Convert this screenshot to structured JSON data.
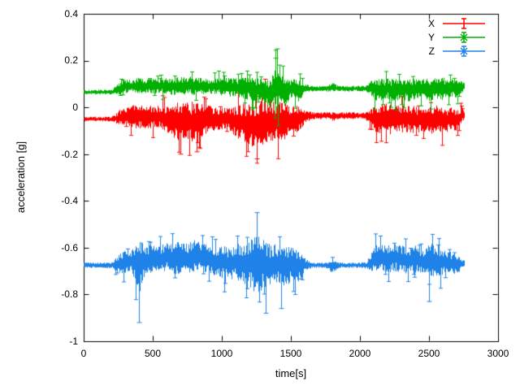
{
  "figure": {
    "background": "#ffffff",
    "border_color": "#000000"
  },
  "axes": {
    "xlabel": "time[s]",
    "ylabel": "acceleration [g]",
    "x_ticks": [
      "0",
      "500",
      "1000",
      "1500",
      "2000",
      "2500",
      "3000"
    ],
    "y_ticks": [
      "0.4",
      "0.2",
      "0",
      "-0.2",
      "-0.4",
      "-0.6",
      "-0.8",
      "-1"
    ],
    "x_range": [
      0,
      3000
    ],
    "y_range": [
      -1,
      0.4
    ],
    "grid": false
  },
  "legend": {
    "position": "top-right",
    "entries": [
      {
        "label": "X",
        "color": "#ff0000",
        "marker": "plus"
      },
      {
        "label": "Y",
        "color": "#00b000",
        "marker": "cross"
      },
      {
        "label": "Z",
        "color": "#1e82e8",
        "marker": "asterisk"
      }
    ]
  },
  "chart_data": {
    "type": "scatter",
    "style": "errorbars",
    "title": "",
    "xlabel": "time[s]",
    "ylabel": "acceleration [g]",
    "xlim": [
      0,
      3000
    ],
    "ylim": [
      -1,
      0.4
    ],
    "x": [
      0,
      50,
      100,
      150,
      200,
      250,
      300,
      350,
      400,
      450,
      500,
      550,
      600,
      650,
      700,
      750,
      800,
      850,
      900,
      950,
      1000,
      1050,
      1100,
      1150,
      1200,
      1250,
      1300,
      1350,
      1400,
      1450,
      1500,
      1550,
      1600,
      1650,
      1700,
      1750,
      1800,
      1850,
      1900,
      1950,
      2000,
      2050,
      2100,
      2150,
      2200,
      2250,
      2300,
      2350,
      2400,
      2450,
      2500,
      2550,
      2600,
      2650,
      2700,
      2750
    ],
    "series": [
      {
        "name": "X",
        "color": "#ff0000",
        "marker": "plus",
        "mean": [
          -0.05,
          -0.05,
          -0.05,
          -0.05,
          -0.05,
          -0.045,
          -0.04,
          -0.04,
          -0.04,
          -0.045,
          -0.04,
          -0.04,
          -0.05,
          -0.06,
          -0.06,
          -0.06,
          -0.06,
          -0.055,
          -0.05,
          -0.05,
          -0.05,
          -0.05,
          -0.06,
          -0.065,
          -0.07,
          -0.08,
          -0.07,
          -0.07,
          -0.06,
          -0.06,
          -0.05,
          -0.05,
          -0.04,
          -0.035,
          -0.035,
          -0.035,
          -0.04,
          -0.035,
          -0.035,
          -0.035,
          -0.035,
          -0.04,
          -0.05,
          -0.055,
          -0.05,
          -0.055,
          -0.05,
          -0.05,
          -0.055,
          -0.05,
          -0.055,
          -0.05,
          -0.055,
          -0.05,
          -0.05,
          -0.03
        ],
        "spread": [
          0.01,
          0.01,
          0.01,
          0.01,
          0.01,
          0.03,
          0.04,
          0.05,
          0.05,
          0.05,
          0.05,
          0.05,
          0.06,
          0.07,
          0.09,
          0.08,
          0.09,
          0.07,
          0.06,
          0.05,
          0.05,
          0.05,
          0.07,
          0.08,
          0.09,
          0.1,
          0.1,
          0.09,
          0.09,
          0.08,
          0.06,
          0.06,
          0.03,
          0.015,
          0.015,
          0.015,
          0.02,
          0.015,
          0.015,
          0.015,
          0.015,
          0.02,
          0.06,
          0.07,
          0.07,
          0.06,
          0.06,
          0.06,
          0.06,
          0.05,
          0.06,
          0.06,
          0.06,
          0.05,
          0.05,
          0.02
        ],
        "outliers": [
          {
            "x": 1310,
            "y": 0.12
          },
          {
            "x": 1250,
            "y": -0.22
          },
          {
            "x": 700,
            "y": -0.2
          },
          {
            "x": 820,
            "y": -0.19
          }
        ]
      },
      {
        "name": "Y",
        "color": "#00b000",
        "marker": "cross",
        "mean": [
          0.065,
          0.065,
          0.065,
          0.065,
          0.065,
          0.08,
          0.09,
          0.09,
          0.095,
          0.09,
          0.09,
          0.09,
          0.09,
          0.09,
          0.09,
          0.095,
          0.09,
          0.09,
          0.09,
          0.09,
          0.09,
          0.085,
          0.085,
          0.08,
          0.08,
          0.075,
          0.07,
          0.06,
          0.09,
          0.06,
          0.08,
          0.07,
          0.08,
          0.08,
          0.08,
          0.08,
          0.085,
          0.08,
          0.08,
          0.08,
          0.08,
          0.08,
          0.08,
          0.075,
          0.08,
          0.07,
          0.08,
          0.075,
          0.08,
          0.08,
          0.075,
          0.08,
          0.08,
          0.085,
          0.08,
          0.09
        ],
        "spread": [
          0.01,
          0.01,
          0.01,
          0.01,
          0.01,
          0.025,
          0.03,
          0.03,
          0.035,
          0.03,
          0.035,
          0.03,
          0.035,
          0.04,
          0.04,
          0.04,
          0.04,
          0.035,
          0.03,
          0.035,
          0.04,
          0.04,
          0.04,
          0.045,
          0.05,
          0.05,
          0.05,
          0.07,
          0.1,
          0.06,
          0.04,
          0.05,
          0.02,
          0.012,
          0.012,
          0.012,
          0.02,
          0.012,
          0.012,
          0.012,
          0.012,
          0.015,
          0.05,
          0.05,
          0.045,
          0.05,
          0.045,
          0.05,
          0.045,
          0.04,
          0.05,
          0.045,
          0.05,
          0.04,
          0.04,
          0.02
        ],
        "outliers": [
          {
            "x": 1400,
            "y": 0.25
          },
          {
            "x": 1390,
            "y": 0.21
          },
          {
            "x": 2250,
            "y": -0.01
          }
        ]
      },
      {
        "name": "Z",
        "color": "#1e82e8",
        "marker": "asterisk",
        "mean": [
          -0.675,
          -0.675,
          -0.675,
          -0.675,
          -0.675,
          -0.67,
          -0.66,
          -0.66,
          -0.68,
          -0.65,
          -0.65,
          -0.65,
          -0.64,
          -0.65,
          -0.64,
          -0.65,
          -0.63,
          -0.64,
          -0.65,
          -0.66,
          -0.66,
          -0.67,
          -0.66,
          -0.67,
          -0.67,
          -0.66,
          -0.67,
          -0.68,
          -0.67,
          -0.68,
          -0.67,
          -0.68,
          -0.675,
          -0.675,
          -0.675,
          -0.675,
          -0.68,
          -0.675,
          -0.675,
          -0.675,
          -0.675,
          -0.675,
          -0.65,
          -0.64,
          -0.65,
          -0.64,
          -0.65,
          -0.66,
          -0.65,
          -0.66,
          -0.66,
          -0.66,
          -0.66,
          -0.665,
          -0.67,
          -0.67
        ],
        "spread": [
          0.012,
          0.012,
          0.012,
          0.012,
          0.012,
          0.04,
          0.05,
          0.05,
          0.12,
          0.06,
          0.06,
          0.06,
          0.06,
          0.07,
          0.07,
          0.07,
          0.07,
          0.06,
          0.06,
          0.06,
          0.07,
          0.07,
          0.08,
          0.08,
          0.1,
          0.14,
          0.12,
          0.09,
          0.09,
          0.09,
          0.08,
          0.07,
          0.03,
          0.012,
          0.012,
          0.012,
          0.03,
          0.012,
          0.012,
          0.012,
          0.012,
          0.015,
          0.06,
          0.06,
          0.06,
          0.06,
          0.06,
          0.05,
          0.06,
          0.05,
          0.08,
          0.07,
          0.06,
          0.05,
          0.04,
          0.02
        ],
        "outliers": [
          {
            "x": 400,
            "y": -0.92
          },
          {
            "x": 1250,
            "y": -0.45
          },
          {
            "x": 1320,
            "y": -0.88
          },
          {
            "x": 2500,
            "y": -0.83
          },
          {
            "x": 1430,
            "y": -0.86
          }
        ]
      }
    ]
  }
}
